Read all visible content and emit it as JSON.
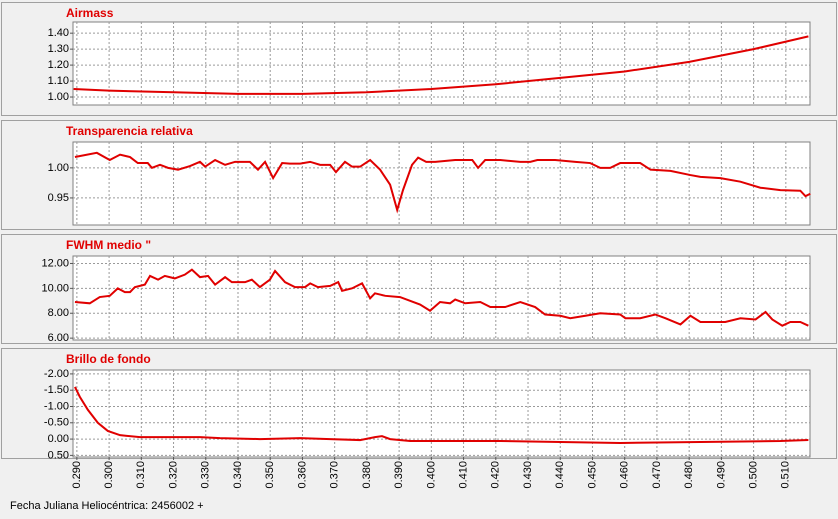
{
  "chart_data": [
    {
      "type": "line",
      "title": "Airmass",
      "color": "#e00000",
      "grid": true,
      "x": [
        0.289,
        0.3,
        0.32,
        0.34,
        0.36,
        0.38,
        0.4,
        0.42,
        0.44,
        0.46,
        0.48,
        0.5,
        0.517
      ],
      "values": [
        1.05,
        1.04,
        1.03,
        1.02,
        1.02,
        1.03,
        1.05,
        1.08,
        1.12,
        1.16,
        1.22,
        1.3,
        1.38
      ],
      "xlim": [
        0.2888,
        0.5175
      ],
      "ylim": [
        0.95,
        1.47
      ],
      "yticks": [
        {
          "value": 1.0,
          "label": "1.00"
        },
        {
          "value": 1.1,
          "label": "1.10"
        },
        {
          "value": 1.2,
          "label": "1.20"
        },
        {
          "value": 1.3,
          "label": "1.30"
        },
        {
          "value": 1.4,
          "label": "1.40"
        }
      ]
    },
    {
      "type": "line",
      "title": "Transparencia relativa",
      "color": "#e00000",
      "grid": true,
      "x": [
        0.2894,
        0.2962,
        0.3002,
        0.3034,
        0.3065,
        0.3089,
        0.312,
        0.3133,
        0.3158,
        0.3183,
        0.3214,
        0.3251,
        0.3282,
        0.3298,
        0.3329,
        0.336,
        0.3391,
        0.3437,
        0.3462,
        0.3484,
        0.3509,
        0.3537,
        0.3561,
        0.3593,
        0.3624,
        0.3655,
        0.3686,
        0.3704,
        0.3732,
        0.3754,
        0.3779,
        0.381,
        0.3841,
        0.3872,
        0.3894,
        0.3912,
        0.394,
        0.3959,
        0.3984,
        0.4012,
        0.4074,
        0.4127,
        0.4145,
        0.4167,
        0.4214,
        0.4276,
        0.4307,
        0.4329,
        0.4384,
        0.4447,
        0.4493,
        0.4524,
        0.4555,
        0.4586,
        0.4648,
        0.468,
        0.4742,
        0.4804,
        0.4835,
        0.4897,
        0.4959,
        0.5021,
        0.5083,
        0.5145,
        0.5161,
        0.5176
      ],
      "values": [
        1.018,
        1.025,
        1.013,
        1.022,
        1.018,
        1.008,
        1.008,
        1.0,
        1.005,
        1.0,
        0.997,
        1.003,
        1.01,
        1.002,
        1.013,
        1.005,
        1.01,
        1.01,
        0.997,
        1.01,
        0.983,
        1.008,
        1.007,
        1.007,
        1.01,
        1.005,
        1.005,
        0.993,
        1.01,
        1.002,
        1.002,
        1.013,
        0.997,
        0.972,
        0.93,
        0.963,
        1.005,
        1.017,
        1.01,
        1.01,
        1.013,
        1.013,
        1.0,
        1.013,
        1.013,
        1.01,
        1.01,
        1.013,
        1.013,
        1.01,
        1.008,
        1.0,
        1.0,
        1.008,
        1.008,
        0.997,
        0.995,
        0.988,
        0.985,
        0.983,
        0.977,
        0.967,
        0.963,
        0.962,
        0.953,
        0.957
      ],
      "xlim": [
        0.2888,
        0.5175
      ],
      "ylim": [
        0.905,
        1.043
      ],
      "yticks": [
        {
          "value": 0.95,
          "label": "0.95"
        },
        {
          "value": 1.0,
          "label": "1.00"
        }
      ]
    },
    {
      "type": "line",
      "title": "FWHM medio \"",
      "color": "#e00000",
      "grid": true,
      "x": [
        0.2894,
        0.294,
        0.2971,
        0.3002,
        0.3027,
        0.3049,
        0.3065,
        0.308,
        0.3111,
        0.3127,
        0.3152,
        0.3173,
        0.3204,
        0.3235,
        0.3257,
        0.3282,
        0.3307,
        0.3329,
        0.336,
        0.3381,
        0.3422,
        0.3443,
        0.3468,
        0.3499,
        0.3515,
        0.3546,
        0.3577,
        0.3608,
        0.3624,
        0.3648,
        0.3686,
        0.3711,
        0.3723,
        0.3754,
        0.3785,
        0.381,
        0.3825,
        0.3857,
        0.3903,
        0.3965,
        0.3996,
        0.4027,
        0.4058,
        0.4074,
        0.4105,
        0.4152,
        0.4183,
        0.4229,
        0.4276,
        0.4322,
        0.4353,
        0.44,
        0.4431,
        0.4478,
        0.4524,
        0.4586,
        0.4602,
        0.4648,
        0.4695,
        0.4726,
        0.4773,
        0.4804,
        0.4835,
        0.4872,
        0.4912,
        0.4959,
        0.5006,
        0.5037,
        0.5058,
        0.5089,
        0.5114,
        0.5145,
        0.517
      ],
      "values": [
        8.9,
        8.8,
        9.3,
        9.4,
        10.0,
        9.7,
        9.7,
        10.1,
        10.3,
        11.0,
        10.7,
        11.0,
        10.8,
        11.1,
        11.5,
        10.9,
        11.0,
        10.3,
        10.9,
        10.5,
        10.5,
        10.7,
        10.1,
        10.7,
        11.4,
        10.5,
        10.1,
        10.1,
        10.4,
        10.1,
        10.2,
        10.5,
        9.8,
        10.0,
        10.4,
        9.2,
        9.6,
        9.4,
        9.3,
        8.7,
        8.2,
        8.9,
        8.8,
        9.1,
        8.8,
        8.9,
        8.5,
        8.5,
        8.9,
        8.5,
        7.9,
        7.8,
        7.6,
        7.8,
        8.0,
        7.9,
        7.6,
        7.6,
        7.9,
        7.6,
        7.1,
        7.8,
        7.3,
        7.3,
        7.3,
        7.6,
        7.5,
        8.1,
        7.5,
        7.0,
        7.3,
        7.3,
        7.0
      ],
      "xlim": [
        0.2888,
        0.5175
      ],
      "ylim": [
        5.85,
        12.6
      ],
      "yticks": [
        {
          "value": 6,
          "label": "6.00"
        },
        {
          "value": 8,
          "label": "8.00"
        },
        {
          "value": 10,
          "label": "10.00"
        },
        {
          "value": 12,
          "label": "12.00"
        }
      ]
    },
    {
      "type": "line",
      "title": "Brillo de fondo",
      "color": "#e00000",
      "grid": true,
      "y_inverted": true,
      "xlabel": "Fecha Juliana Heliocéntrica: 2456002 +",
      "x": [
        0.2894,
        0.2909,
        0.2934,
        0.2965,
        0.2996,
        0.3034,
        0.3096,
        0.3282,
        0.3344,
        0.3468,
        0.3593,
        0.3686,
        0.3779,
        0.3825,
        0.3847,
        0.3872,
        0.3934,
        0.4214,
        0.4586,
        0.4835,
        0.5083,
        0.517
      ],
      "values": [
        -1.6,
        -1.3,
        -0.9,
        -0.5,
        -0.25,
        -0.12,
        -0.06,
        -0.06,
        -0.03,
        0,
        -0.03,
        0,
        0.03,
        -0.06,
        -0.09,
        0,
        0.06,
        0.06,
        0.12,
        0.09,
        0.06,
        0.03
      ],
      "xlim": [
        0.2888,
        0.5175
      ],
      "ylim": [
        -2.12,
        0.55
      ],
      "yticks": [
        {
          "value": -2,
          "label": "-2.00"
        },
        {
          "value": -1.5,
          "label": "-1.50"
        },
        {
          "value": -1,
          "label": "-1.00"
        },
        {
          "value": -0.5,
          "label": "-0.50"
        },
        {
          "value": 0,
          "label": "0.00"
        },
        {
          "value": 0.5,
          "label": "0.50"
        }
      ],
      "xticks": [
        {
          "value": 0.29,
          "label": "0.290"
        },
        {
          "value": 0.3,
          "label": "0.300"
        },
        {
          "value": 0.31,
          "label": "0.310"
        },
        {
          "value": 0.32,
          "label": "0.320"
        },
        {
          "value": 0.33,
          "label": "0.330"
        },
        {
          "value": 0.34,
          "label": "0.340"
        },
        {
          "value": 0.35,
          "label": "0.350"
        },
        {
          "value": 0.36,
          "label": "0.360"
        },
        {
          "value": 0.37,
          "label": "0.370"
        },
        {
          "value": 0.38,
          "label": "0.380"
        },
        {
          "value": 0.39,
          "label": "0.390"
        },
        {
          "value": 0.4,
          "label": "0.400"
        },
        {
          "value": 0.41,
          "label": "0.410"
        },
        {
          "value": 0.42,
          "label": "0.420"
        },
        {
          "value": 0.43,
          "label": "0.430"
        },
        {
          "value": 0.44,
          "label": "0.440"
        },
        {
          "value": 0.45,
          "label": "0.450"
        },
        {
          "value": 0.46,
          "label": "0.460"
        },
        {
          "value": 0.47,
          "label": "0.470"
        },
        {
          "value": 0.48,
          "label": "0.480"
        },
        {
          "value": 0.49,
          "label": "0.490"
        },
        {
          "value": 0.5,
          "label": "0.500"
        },
        {
          "value": 0.51,
          "label": "0.510"
        }
      ]
    }
  ]
}
